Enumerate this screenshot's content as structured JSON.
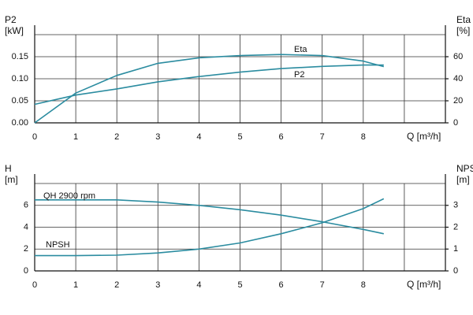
{
  "chart_data": [
    {
      "type": "line",
      "xlabel": "Q [m³/h]",
      "ylabel": [
        "P2",
        "[kW]"
      ],
      "y2label": [
        "Eta",
        "[%]"
      ],
      "x": [
        0,
        1,
        2,
        3,
        4,
        5,
        6,
        7,
        8,
        8.5
      ],
      "xlim": [
        0,
        10
      ],
      "xticks": [
        0,
        1,
        2,
        3,
        4,
        5,
        6,
        7,
        8
      ],
      "ylim": [
        0,
        0.2
      ],
      "yticks": [
        {
          "value": 0,
          "label": "0.00"
        },
        0.05,
        {
          "value": 0.1,
          "label": "0.10"
        },
        0.15
      ],
      "y2lim": [
        0,
        80
      ],
      "y2ticks": [
        0,
        20,
        40,
        60
      ],
      "grid": true,
      "series": [
        {
          "name": "Eta",
          "color": "#2b8ca0",
          "axis": "y2",
          "values": [
            0,
            27,
            43,
            54,
            59,
            61,
            62,
            61,
            56,
            51
          ]
        },
        {
          "name": "P2",
          "color": "#2b8ca0",
          "values": [
            0.042,
            0.063,
            0.077,
            0.093,
            0.105,
            0.115,
            0.123,
            0.128,
            0.131,
            0.131
          ]
        }
      ]
    },
    {
      "type": "line",
      "xlabel": "Q [m³/h]",
      "ylabel": [
        "H",
        "[m]"
      ],
      "y2label": [
        "NPSH",
        "[m]"
      ],
      "x": [
        0,
        1,
        2,
        3,
        4,
        5,
        6,
        7,
        8,
        8.5
      ],
      "xlim": [
        0,
        10
      ],
      "xticks": [
        0,
        1,
        2,
        3,
        4,
        5,
        6,
        7,
        8
      ],
      "ylim": [
        0,
        8
      ],
      "yticks": [
        0,
        2,
        4,
        6
      ],
      "y2lim": [
        0,
        4
      ],
      "y2ticks": [
        0,
        1,
        2,
        3
      ],
      "grid": true,
      "series": [
        {
          "name": "QH 2900 rpm",
          "color": "#2b8ca0",
          "values": [
            6.5,
            6.5,
            6.5,
            6.3,
            6.0,
            5.6,
            5.1,
            4.5,
            3.8,
            3.4
          ]
        },
        {
          "name": "NPSH",
          "color": "#2b8ca0",
          "axis": "y2",
          "values": [
            0.7,
            0.7,
            0.72,
            0.82,
            1.0,
            1.28,
            1.7,
            2.2,
            2.85,
            3.3
          ]
        }
      ]
    }
  ]
}
